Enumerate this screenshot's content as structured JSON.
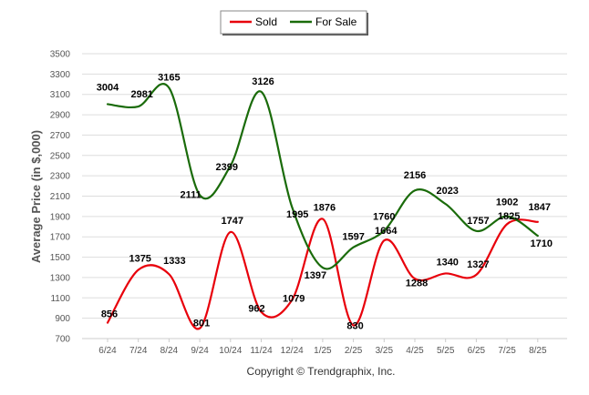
{
  "chart_data": {
    "type": "line",
    "title": "",
    "xlabel": "",
    "ylabel": "Average Price (in $,000)",
    "categories": [
      "6/24",
      "7/24",
      "8/24",
      "9/24",
      "10/24",
      "11/24",
      "12/24",
      "1/25",
      "2/25",
      "3/25",
      "4/25",
      "5/25",
      "6/25",
      "7/25",
      "8/25"
    ],
    "ylim": [
      700,
      3500
    ],
    "yticks": [
      700,
      900,
      1100,
      1300,
      1500,
      1700,
      1900,
      2100,
      2300,
      2500,
      2700,
      2900,
      3100,
      3300,
      3500
    ],
    "grid": true,
    "legend_position": "top-center",
    "series": [
      {
        "name": "Sold",
        "color": "#e8000b",
        "values": [
          856,
          1375,
          1333,
          801,
          1747,
          962,
          1079,
          1876,
          830,
          1664,
          1288,
          1340,
          1327,
          1825,
          1847
        ]
      },
      {
        "name": "For Sale",
        "color": "#1a6b0a",
        "values": [
          3004,
          2981,
          3165,
          2111,
          2399,
          3126,
          1995,
          1397,
          1597,
          1760,
          2156,
          2023,
          1757,
          1902,
          1710
        ]
      }
    ],
    "credit": "Copyright © Trendgraphix, Inc."
  }
}
